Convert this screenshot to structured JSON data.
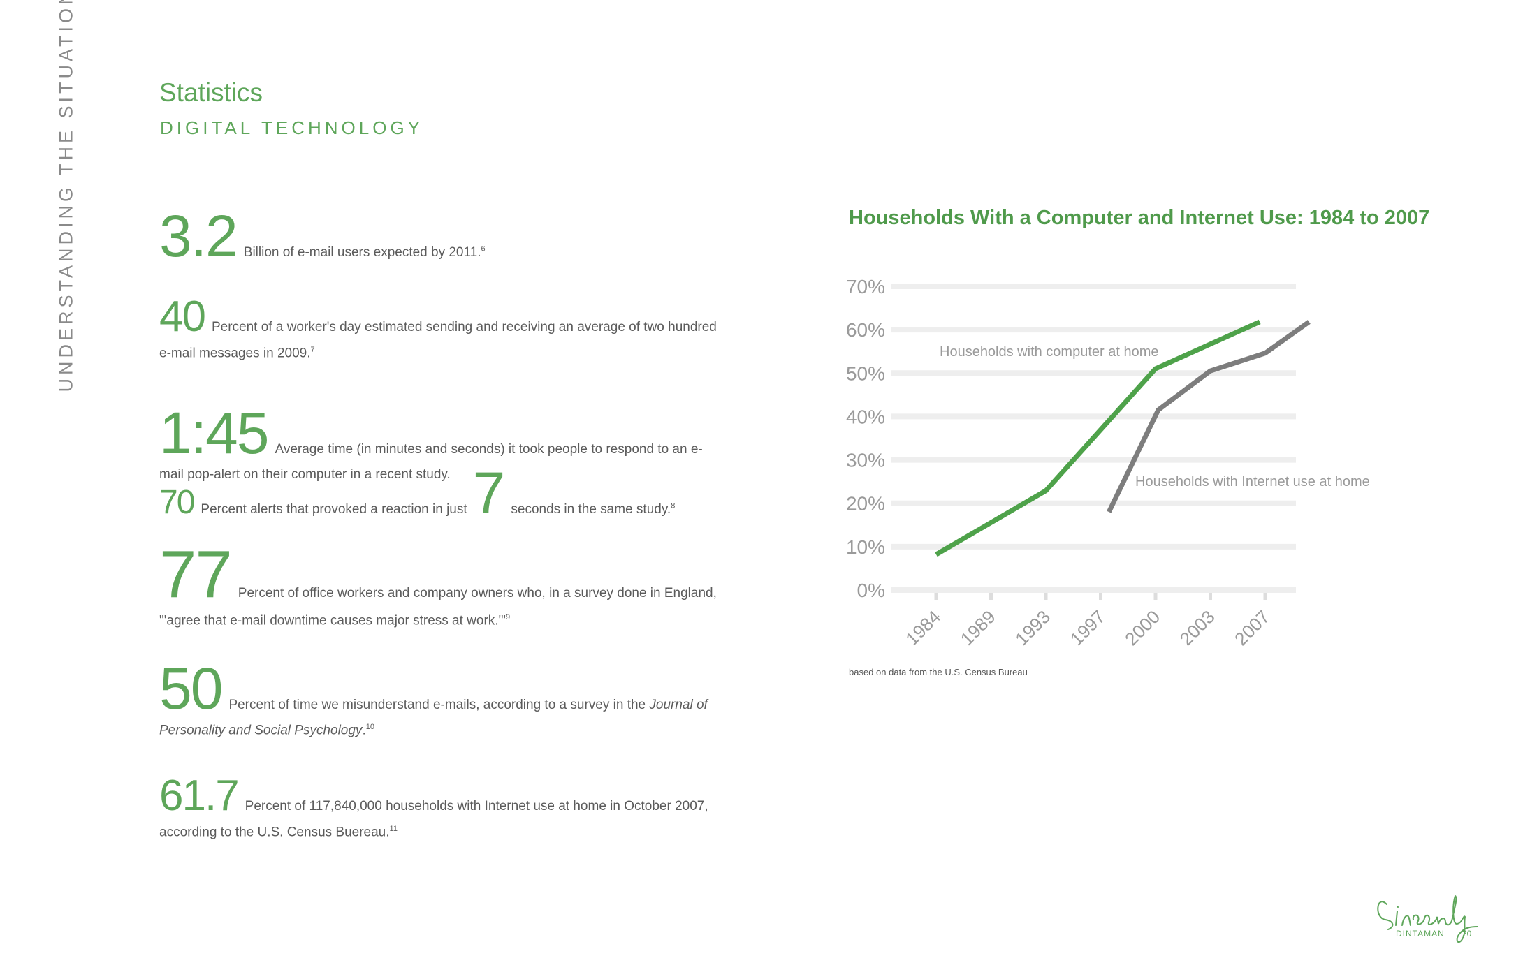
{
  "side_title": "UNDERSTANDING THE SITUATION",
  "heading": "Statistics",
  "subheading": "DIGITAL TECHNOLOGY",
  "stats": [
    {
      "number": "3.2",
      "text": "Billion of e-mail users expected by 2011.",
      "note": "6"
    },
    {
      "number": "40",
      "text": "Percent of a worker's day estimated sending and receiving an average of two hundred",
      "text2": "e-mail messages in 2009.",
      "note": "7"
    },
    {
      "number": "1:45",
      "text": "Average time (in minutes and seconds) it took people to respond to an e-",
      "text2": "mail pop-alert on their computer in a recent study."
    },
    {
      "number": "70",
      "text": "Percent alerts that provoked a reaction in just",
      "number2": "7",
      "text2": "seconds in the same study.",
      "note": "8"
    },
    {
      "number": "77",
      "text": "Percent of office workers and company owners who, in a survey done in England,",
      "text2": "\"'agree that e-mail downtime causes major stress at work.'\"",
      "note": "9"
    },
    {
      "number": "50",
      "text": "Percent of time we misunderstand e-mails, according to a survey in the",
      "text_italic": "Journal of",
      "text2_italic": "Personality and Social Psychology",
      "text2": ".",
      "note": "10"
    },
    {
      "number": "61.7",
      "text": "Percent of 117,840,000 households with Internet use at home in October 2007,",
      "text2": "according to the U.S. Census Buereau.",
      "note": "11"
    }
  ],
  "chart_data": {
    "type": "line",
    "title": "Households With a Computer and Internet Use: 1984 to 2007",
    "categories": [
      "1984",
      "1989",
      "1993",
      "1997",
      "2000",
      "2003",
      "2007"
    ],
    "y_ticks": [
      "0%",
      "10%",
      "20%",
      "30%",
      "40%",
      "50%",
      "60%",
      "70%"
    ],
    "ylim": [
      0,
      70
    ],
    "grid": true,
    "series": [
      {
        "name": "Households with computer at home",
        "color": "#4ea24a",
        "points": [
          {
            "x": 0,
            "y": 8.2
          },
          {
            "x": 2,
            "y": 22.9
          },
          {
            "x": 4,
            "y": 51
          },
          {
            "x": 5.9,
            "y": 61.8
          }
        ]
      },
      {
        "name": "Households with Internet use at home",
        "color": "#7d7d7d",
        "points": [
          {
            "x": 3.15,
            "y": 18
          },
          {
            "x": 4.05,
            "y": 41.5
          },
          {
            "x": 5,
            "y": 50.5
          },
          {
            "x": 6,
            "y": 54.6
          },
          {
            "x": 6.8,
            "y": 61.8
          }
        ]
      }
    ]
  },
  "chart_source": "based on data from the U.S. Census Bureau",
  "footer": {
    "signature": "Sincerely",
    "name": "DINTAMAN",
    "page": "20"
  },
  "colors": {
    "accent": "#5ea65a",
    "line_green": "#4ea24a",
    "line_gray": "#7d7d7d",
    "grid": "#eeeeee"
  }
}
